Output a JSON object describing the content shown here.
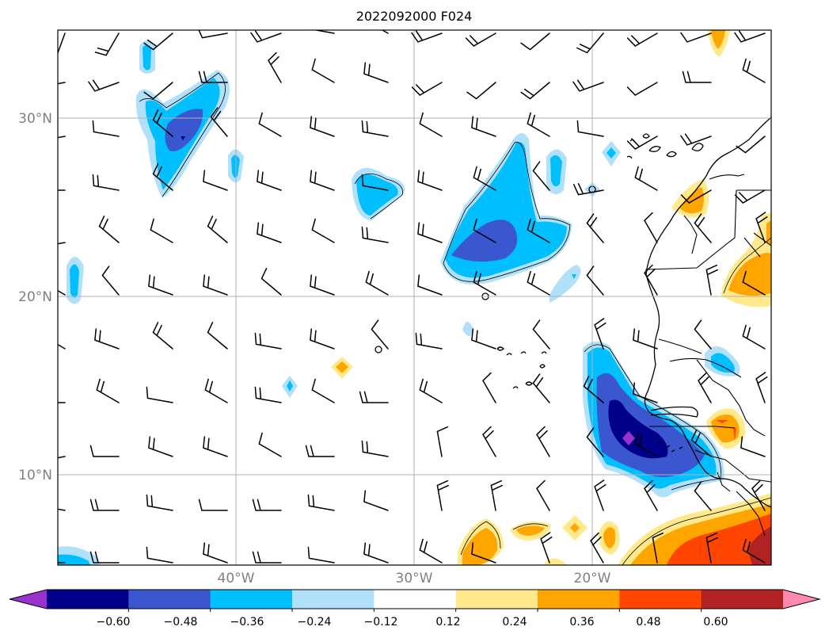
{
  "title": "2022092000 F024",
  "lat_labels": [
    "30°N",
    "20°N",
    "10°N"
  ],
  "lon_labels": [
    "40°W",
    "30°W",
    "20°W"
  ],
  "colorbar": {
    "ticks": [
      "−0.60",
      "−0.48",
      "−0.36",
      "−0.24",
      "−0.12",
      "0.12",
      "0.24",
      "0.36",
      "0.48",
      "0.60"
    ],
    "colors": [
      "#9932cc",
      "#00008b",
      "#3a57cf",
      "#00bfff",
      "#b0e0fa",
      "#ffffff",
      "#ffe98a",
      "#ffa500",
      "#ff4500",
      "#b22222",
      "#ff88b0"
    ]
  },
  "colors": {
    "purple": "#9932cc",
    "navy": "#00008b",
    "royal": "#3a57cf",
    "cyan": "#00bfff",
    "light_blue": "#b0e0fa",
    "yellow": "#ffe98a",
    "orange": "#ffa500",
    "red_orange": "#ff4500",
    "dark_red": "#b22222",
    "pink": "#ff88b0"
  }
}
